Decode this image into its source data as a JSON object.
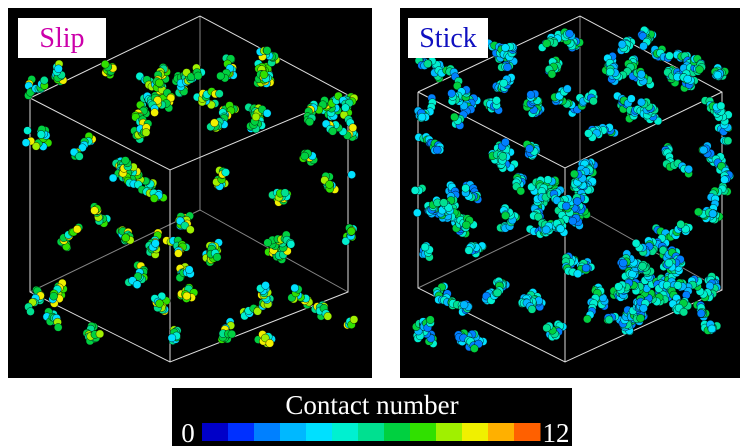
{
  "panels": [
    {
      "label": "Slip",
      "label_color": "#cc00aa"
    },
    {
      "label": "Stick",
      "label_color": "#1010c0"
    }
  ],
  "colorbar": {
    "title": "Contact number",
    "min_label": "0",
    "max_label": "12",
    "colors": [
      "#0000c8",
      "#0030ff",
      "#0080ff",
      "#00b8ff",
      "#00e0ff",
      "#00f0d0",
      "#00e090",
      "#00d040",
      "#30e000",
      "#a0f000",
      "#f0f000",
      "#ffb000",
      "#ff6000"
    ]
  }
}
